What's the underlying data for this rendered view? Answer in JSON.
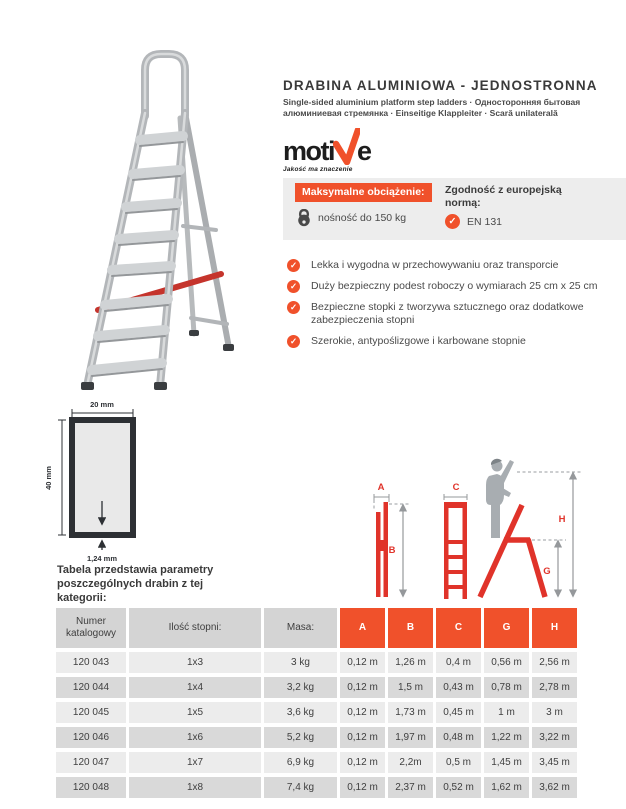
{
  "header": {
    "title": "DRABINA ALUMINIOWA - JEDNOSTRONNA",
    "subtitle": "Single-sided aluminium platform step ladders · Односторонняя бытовая алюминиевая стремянка · Einseitige Klappleiter · Scară unilaterală"
  },
  "logo": {
    "word_start": "moti",
    "word_end": "e",
    "tagline": "Jakość ma znaczenie"
  },
  "spec_panel": {
    "max_load_badge": "Maksymalne obciążenie:",
    "max_load_text": "nośność do 150 kg",
    "norm_label": "Zgodność z europejską normą:",
    "norm_value": "EN 131"
  },
  "features": [
    "Lekka i wygodna w przechowywaniu oraz transporcie",
    "Duży bezpieczny podest roboczy o wymiarach 25 cm x 25 cm",
    "Bezpieczne stopki z tworzywa sztucznego oraz dodatkowe zabezpieczenia stopni",
    "Szerokie, antypoślizgowe i karbowane stopnie"
  ],
  "profile_diagram": {
    "width": "20 mm",
    "height": "40 mm",
    "wall": "1,24 mm"
  },
  "table_intro": "Tabela przedstawia parametry poszczególnych drabin z tej kategorii:",
  "dim_diagram": {
    "a": "A",
    "b": "B",
    "c": "C",
    "g": "G",
    "h": "H"
  },
  "table": {
    "headers": [
      "Numer katalogowy",
      "Ilość stopni:",
      "Masa:",
      "A",
      "B",
      "C",
      "G",
      "H"
    ],
    "rows": [
      [
        "120 043",
        "1x3",
        "3 kg",
        "0,12 m",
        "1,26 m",
        "0,4 m",
        "0,56 m",
        "2,56 m"
      ],
      [
        "120 044",
        "1x4",
        "3,2 kg",
        "0,12 m",
        "1,5 m",
        "0,43 m",
        "0,78 m",
        "2,78 m"
      ],
      [
        "120 045",
        "1x5",
        "3,6 kg",
        "0,12 m",
        "1,73 m",
        "0,45 m",
        "1 m",
        "3 m"
      ],
      [
        "120 046",
        "1x6",
        "5,2 kg",
        "0,12 m",
        "1,97 m",
        "0,48 m",
        "1,22 m",
        "3,22 m"
      ],
      [
        "120 047",
        "1x7",
        "6,9 kg",
        "0,12 m",
        "2,2m",
        "0,5 m",
        "1,45 m",
        "3,45 m"
      ],
      [
        "120 048",
        "1x8",
        "7,4 kg",
        "0,12 m",
        "2,37 m",
        "0,52 m",
        "1,62 m",
        "3,62 m"
      ]
    ]
  },
  "icons": {
    "check": "✓"
  },
  "colors": {
    "accent_orange": "#f0512b",
    "diagram_red": "#e0332a",
    "panel_gray": "#ededed",
    "row_light": "#ececec",
    "row_dark": "#d9d9d9",
    "header_gray": "#d4d4d4",
    "text_dark": "#3f3f3f"
  }
}
